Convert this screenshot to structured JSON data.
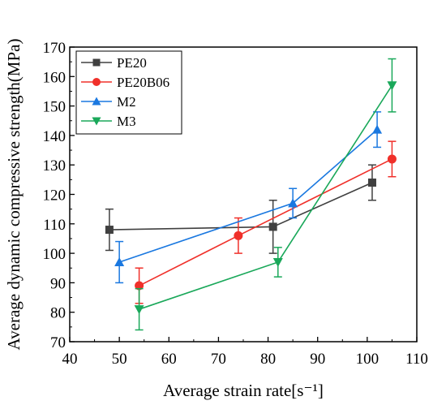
{
  "chart_data": {
    "type": "line",
    "xlabel": "Average strain rate[s⁻¹]",
    "ylabel": "Average dynamic compressive strength(MPa)",
    "xlim": [
      40,
      110
    ],
    "ylim": [
      70,
      170
    ],
    "xticks": [
      "40",
      "50",
      "60",
      "70",
      "80",
      "90",
      "100",
      "110"
    ],
    "yticks": [
      "70",
      "80",
      "90",
      "100",
      "110",
      "120",
      "130",
      "140",
      "150",
      "160",
      "170"
    ],
    "grid": false,
    "legend_position": "top-left",
    "series": [
      {
        "name": "PE20",
        "color": "#404040",
        "marker": "square",
        "x": [
          48,
          81,
          101
        ],
        "y": [
          108,
          109,
          124
        ],
        "err": [
          7,
          9,
          6
        ]
      },
      {
        "name": "PE20B06",
        "color": "#f0302a",
        "marker": "circle",
        "x": [
          54,
          74,
          105
        ],
        "y": [
          89,
          106,
          132
        ],
        "err": [
          6,
          6,
          6
        ]
      },
      {
        "name": "M2",
        "color": "#1a78e0",
        "marker": "triangle-up",
        "x": [
          50,
          85,
          102
        ],
        "y": [
          97,
          117,
          142
        ],
        "err": [
          7,
          5,
          6
        ]
      },
      {
        "name": "M3",
        "color": "#1aa85a",
        "marker": "triangle-down",
        "x": [
          54,
          82,
          105
        ],
        "y": [
          81,
          97,
          157
        ],
        "err": [
          7,
          5,
          9
        ]
      }
    ]
  }
}
